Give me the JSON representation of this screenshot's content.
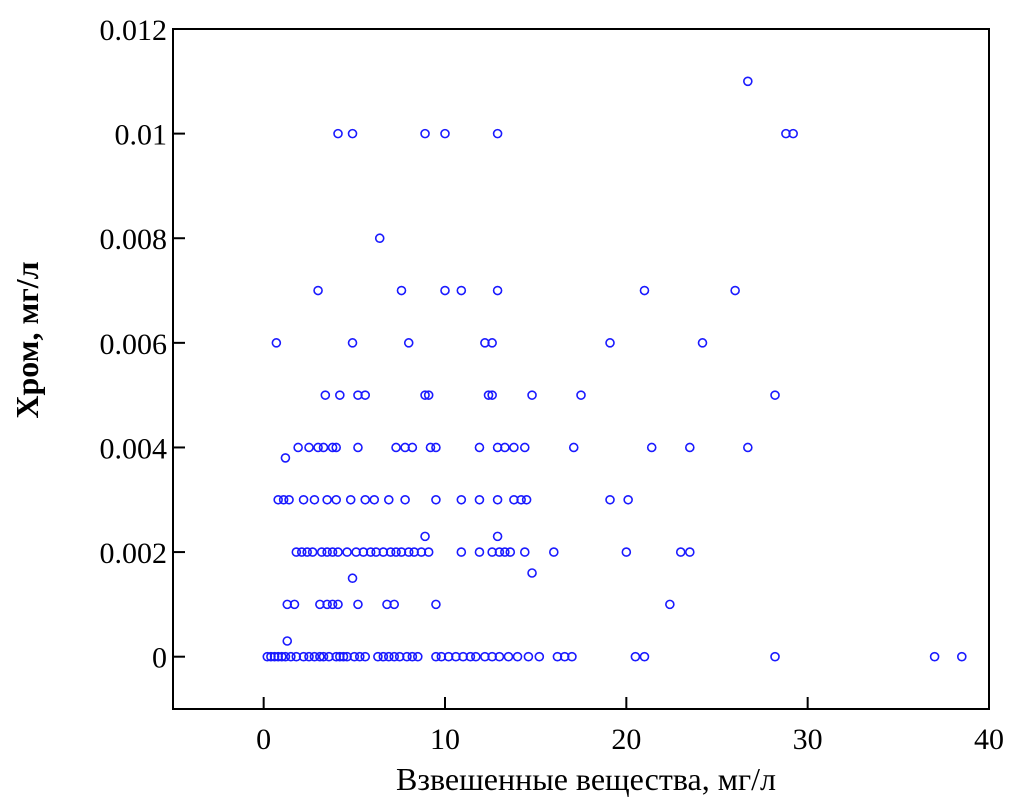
{
  "chart_data": {
    "type": "scatter",
    "title": "",
    "xlabel": "Взвешенные вещества, мг/л",
    "ylabel": "Хром,   мг/л",
    "xlim": [
      -5,
      40
    ],
    "ylim": [
      -0.001,
      0.012
    ],
    "xticks": [
      0,
      10,
      20,
      30,
      40
    ],
    "xtick_labels": [
      "0",
      "10",
      "20",
      "30",
      "40"
    ],
    "yticks": [
      0,
      0.002,
      0.004,
      0.006,
      0.008,
      0.01,
      0.012
    ],
    "ytick_labels": [
      "0",
      "0.002",
      "0.004",
      "0.006",
      "0.008",
      "0.01",
      "0.012"
    ],
    "grid": false,
    "legend": "none",
    "marker_color": "#1a1aff",
    "points": [
      [
        0.2,
        0
      ],
      [
        0.4,
        0
      ],
      [
        0.6,
        0
      ],
      [
        0.8,
        0
      ],
      [
        1.0,
        0
      ],
      [
        1.2,
        0
      ],
      [
        1.5,
        0
      ],
      [
        1.8,
        0
      ],
      [
        2.2,
        0
      ],
      [
        2.5,
        0
      ],
      [
        2.8,
        0
      ],
      [
        3.1,
        0
      ],
      [
        3.3,
        0
      ],
      [
        3.6,
        0
      ],
      [
        4.0,
        0
      ],
      [
        4.2,
        0
      ],
      [
        4.4,
        0
      ],
      [
        4.6,
        0
      ],
      [
        5.0,
        0
      ],
      [
        5.3,
        0
      ],
      [
        5.6,
        0
      ],
      [
        6.3,
        0
      ],
      [
        6.6,
        0
      ],
      [
        6.9,
        0
      ],
      [
        7.2,
        0
      ],
      [
        7.5,
        0
      ],
      [
        7.9,
        0
      ],
      [
        8.2,
        0
      ],
      [
        8.5,
        0
      ],
      [
        9.5,
        0
      ],
      [
        9.8,
        0
      ],
      [
        10.2,
        0
      ],
      [
        10.6,
        0
      ],
      [
        11.0,
        0
      ],
      [
        11.4,
        0
      ],
      [
        11.7,
        0
      ],
      [
        12.2,
        0
      ],
      [
        12.6,
        0
      ],
      [
        13.0,
        0
      ],
      [
        13.5,
        0
      ],
      [
        14.0,
        0
      ],
      [
        14.6,
        0
      ],
      [
        15.2,
        0
      ],
      [
        16.2,
        0
      ],
      [
        16.6,
        0
      ],
      [
        17.0,
        0
      ],
      [
        20.5,
        0
      ],
      [
        21.0,
        0
      ],
      [
        28.2,
        0
      ],
      [
        37.0,
        0
      ],
      [
        38.5,
        0
      ],
      [
        1.3,
        0.0003
      ],
      [
        1.3,
        0.001
      ],
      [
        1.7,
        0.001
      ],
      [
        3.1,
        0.001
      ],
      [
        3.5,
        0.001
      ],
      [
        3.8,
        0.001
      ],
      [
        4.1,
        0.001
      ],
      [
        5.2,
        0.001
      ],
      [
        6.8,
        0.001
      ],
      [
        7.2,
        0.001
      ],
      [
        9.5,
        0.001
      ],
      [
        22.4,
        0.001
      ],
      [
        4.9,
        0.0015
      ],
      [
        14.8,
        0.0016
      ],
      [
        1.8,
        0.002
      ],
      [
        2.1,
        0.002
      ],
      [
        2.4,
        0.002
      ],
      [
        2.7,
        0.002
      ],
      [
        3.2,
        0.002
      ],
      [
        3.5,
        0.002
      ],
      [
        3.8,
        0.002
      ],
      [
        4.1,
        0.002
      ],
      [
        4.6,
        0.002
      ],
      [
        5.1,
        0.002
      ],
      [
        5.5,
        0.002
      ],
      [
        5.9,
        0.002
      ],
      [
        6.2,
        0.002
      ],
      [
        6.6,
        0.002
      ],
      [
        7.0,
        0.002
      ],
      [
        7.3,
        0.002
      ],
      [
        7.6,
        0.002
      ],
      [
        8.0,
        0.002
      ],
      [
        8.3,
        0.002
      ],
      [
        8.7,
        0.002
      ],
      [
        9.1,
        0.002
      ],
      [
        10.9,
        0.002
      ],
      [
        11.9,
        0.002
      ],
      [
        12.6,
        0.002
      ],
      [
        13.0,
        0.002
      ],
      [
        13.3,
        0.002
      ],
      [
        13.6,
        0.002
      ],
      [
        14.4,
        0.002
      ],
      [
        16.0,
        0.002
      ],
      [
        20.0,
        0.002
      ],
      [
        23.0,
        0.002
      ],
      [
        23.5,
        0.002
      ],
      [
        8.9,
        0.0023
      ],
      [
        12.9,
        0.0023
      ],
      [
        0.8,
        0.003
      ],
      [
        1.1,
        0.003
      ],
      [
        1.4,
        0.003
      ],
      [
        2.2,
        0.003
      ],
      [
        2.8,
        0.003
      ],
      [
        3.5,
        0.003
      ],
      [
        4.0,
        0.003
      ],
      [
        4.8,
        0.003
      ],
      [
        5.6,
        0.003
      ],
      [
        6.1,
        0.003
      ],
      [
        6.9,
        0.003
      ],
      [
        7.8,
        0.003
      ],
      [
        9.5,
        0.003
      ],
      [
        10.9,
        0.003
      ],
      [
        11.9,
        0.003
      ],
      [
        12.9,
        0.003
      ],
      [
        13.8,
        0.003
      ],
      [
        14.2,
        0.003
      ],
      [
        14.5,
        0.003
      ],
      [
        19.1,
        0.003
      ],
      [
        20.1,
        0.003
      ],
      [
        1.2,
        0.0038
      ],
      [
        1.9,
        0.004
      ],
      [
        2.5,
        0.004
      ],
      [
        3.0,
        0.004
      ],
      [
        3.3,
        0.004
      ],
      [
        3.8,
        0.004
      ],
      [
        4.0,
        0.004
      ],
      [
        5.2,
        0.004
      ],
      [
        7.3,
        0.004
      ],
      [
        7.8,
        0.004
      ],
      [
        8.2,
        0.004
      ],
      [
        9.2,
        0.004
      ],
      [
        9.5,
        0.004
      ],
      [
        11.9,
        0.004
      ],
      [
        12.9,
        0.004
      ],
      [
        13.3,
        0.004
      ],
      [
        13.8,
        0.004
      ],
      [
        14.4,
        0.004
      ],
      [
        17.1,
        0.004
      ],
      [
        21.4,
        0.004
      ],
      [
        23.5,
        0.004
      ],
      [
        26.7,
        0.004
      ],
      [
        3.4,
        0.005
      ],
      [
        4.2,
        0.005
      ],
      [
        5.2,
        0.005
      ],
      [
        5.6,
        0.005
      ],
      [
        8.9,
        0.005
      ],
      [
        9.1,
        0.005
      ],
      [
        12.4,
        0.005
      ],
      [
        12.6,
        0.005
      ],
      [
        14.8,
        0.005
      ],
      [
        17.5,
        0.005
      ],
      [
        28.2,
        0.005
      ],
      [
        0.7,
        0.006
      ],
      [
        4.9,
        0.006
      ],
      [
        8.0,
        0.006
      ],
      [
        12.2,
        0.006
      ],
      [
        12.6,
        0.006
      ],
      [
        19.1,
        0.006
      ],
      [
        24.2,
        0.006
      ],
      [
        3.0,
        0.007
      ],
      [
        7.6,
        0.007
      ],
      [
        10.0,
        0.007
      ],
      [
        10.9,
        0.007
      ],
      [
        12.9,
        0.007
      ],
      [
        21.0,
        0.007
      ],
      [
        26.0,
        0.007
      ],
      [
        6.4,
        0.008
      ],
      [
        4.1,
        0.01
      ],
      [
        4.9,
        0.01
      ],
      [
        8.9,
        0.01
      ],
      [
        10.0,
        0.01
      ],
      [
        12.9,
        0.01
      ],
      [
        28.8,
        0.01
      ],
      [
        29.2,
        0.01
      ],
      [
        26.7,
        0.011
      ]
    ]
  }
}
